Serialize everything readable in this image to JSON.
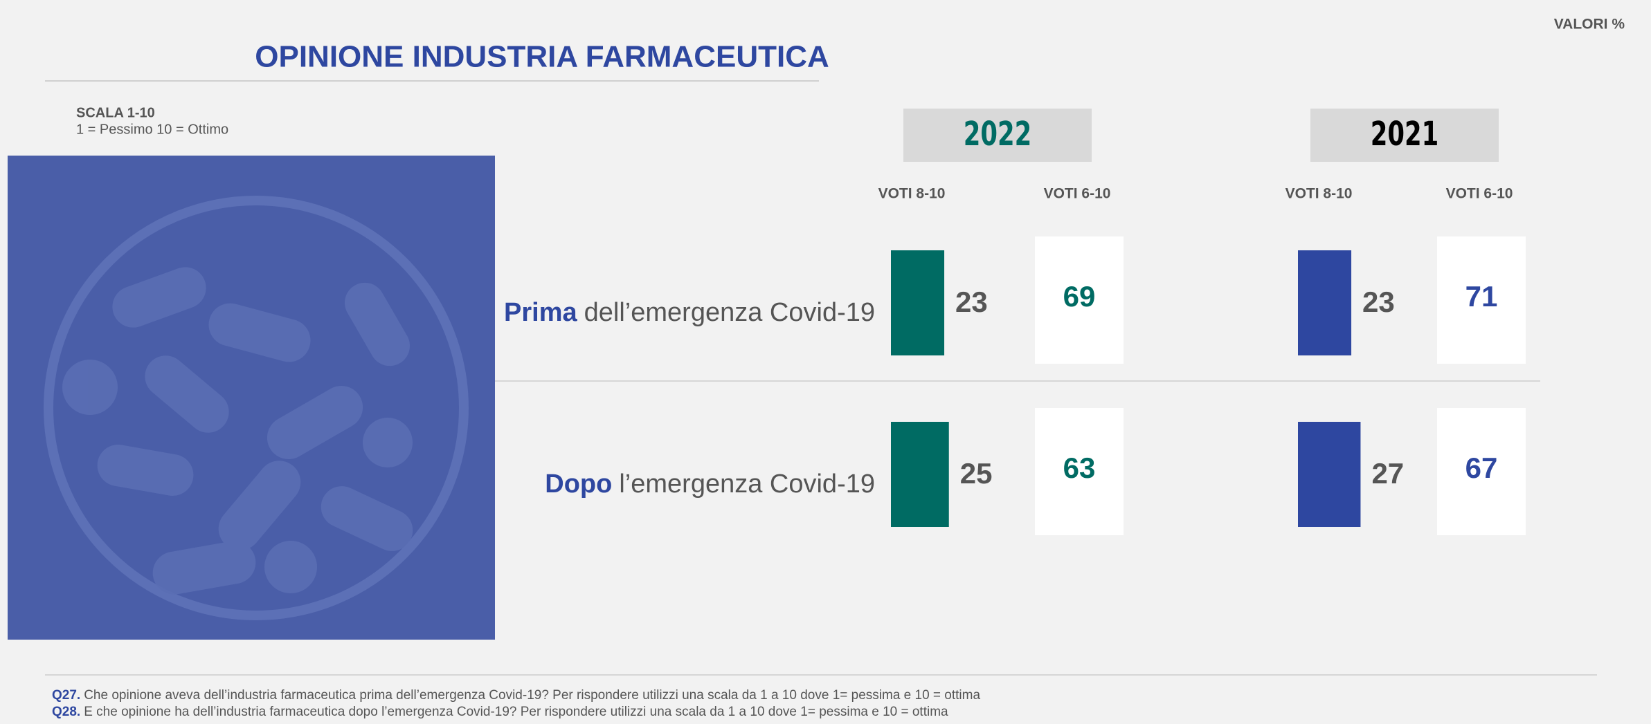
{
  "valori_label": "VALORI %",
  "chart_data": {
    "type": "bar",
    "title": "OPINIONE INDUSTRIA FARMACEUTICA",
    "scale_title": "SCALA 1-10",
    "scale_note": "1 = Pessimo 10 = Ottimo",
    "category_highlights": [
      "Prima",
      "Dopo"
    ],
    "categories": [
      "dell’emergenza Covid-19",
      "l’emergenza Covid-19"
    ],
    "panels": [
      {
        "year": "2022",
        "year_color": "#006b63",
        "color": "#006b63",
        "series": [
          {
            "name": "VOTI 8-10",
            "values": [
              23,
              25
            ]
          },
          {
            "name": "VOTI 6-10",
            "values": [
              69,
              63
            ]
          }
        ]
      },
      {
        "year": "2021",
        "year_color": "#000000",
        "color": "#2e47a0",
        "series": [
          {
            "name": "VOTI 8-10",
            "values": [
              23,
              27
            ]
          },
          {
            "name": "VOTI 6-10",
            "values": [
              71,
              67
            ]
          }
        ]
      }
    ]
  },
  "footnotes": [
    {
      "id": "Q27.",
      "text": "Che opinione aveva dell’industria farmaceutica prima dell’emergenza Covid-19? Per rispondere utilizzi una scala da 1 a 10 dove 1= pessima e 10 = ottima"
    },
    {
      "id": "Q28.",
      "text": "E che opinione ha dell’industria farmaceutica dopo l’emergenza Covid-19? Per rispondere utilizzi una scala da 1 a 10 dove 1= pessima e 10 = ottima"
    }
  ]
}
